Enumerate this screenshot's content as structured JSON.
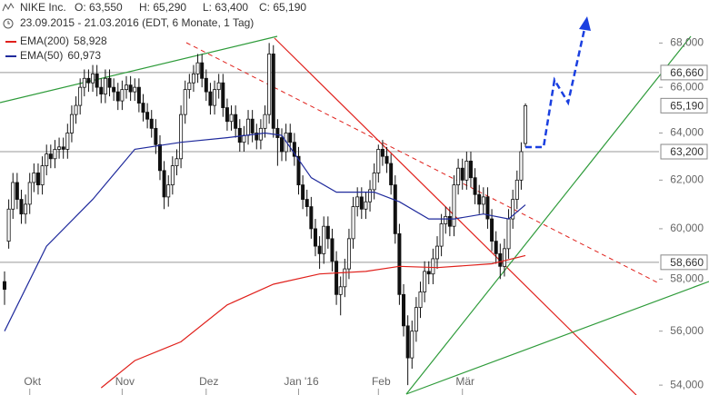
{
  "chart_data": {
    "type": "candlestick",
    "symbol": "NIKE Inc.",
    "ohlc_info": [
      "O: 63,550",
      "H: 65,290",
      "L: 63,400",
      "C: 65,190"
    ],
    "range_text": "23.09.2015 - 21.03.2016 (EDT, 6 Monate, 1 Tag)",
    "log_scale": true,
    "grid": false,
    "xlim": [
      -1.08,
      155.8
    ],
    "xticks": [
      {
        "value": 6,
        "label": "Okt"
      },
      {
        "value": 28,
        "label": "Nov"
      },
      {
        "value": 48,
        "label": "Dez"
      },
      {
        "value": 70,
        "label": "Jan '16"
      },
      {
        "value": 89,
        "label": "Feb"
      },
      {
        "value": 109,
        "label": "Mär"
      }
    ],
    "ylim": [
      53.74,
      70
    ],
    "yticks": [
      {
        "value": 54,
        "label": "54,000"
      },
      {
        "value": 56,
        "label": "56,000"
      },
      {
        "value": 58,
        "label": "58,000"
      },
      {
        "value": 60,
        "label": "60,000"
      },
      {
        "value": 62,
        "label": "62,000"
      },
      {
        "value": 64,
        "label": "64,000"
      },
      {
        "value": 66,
        "label": "66,000"
      },
      {
        "value": 68,
        "label": "68,000"
      }
    ],
    "levels": [
      {
        "value": 66.66,
        "label": "66,660"
      },
      {
        "value": 63.2,
        "label": "63,200"
      },
      {
        "value": 58.66,
        "label": "58,660"
      }
    ],
    "price_label": {
      "value": 65.19,
      "label": "65,190"
    },
    "up_color": "#ffffff",
    "down_color": "#111111",
    "ohlc": [
      [
        57.9,
        58.3,
        57.0,
        57.6
      ],
      [
        59.5,
        61.2,
        59.2,
        60.8
      ],
      [
        60.8,
        62.3,
        60.4,
        61.9
      ],
      [
        61.9,
        62.3,
        60.8,
        61.2
      ],
      [
        61.2,
        61.6,
        60.2,
        60.6
      ],
      [
        60.6,
        61.4,
        60.2,
        61.0
      ],
      [
        61.0,
        62.3,
        60.6,
        61.9
      ],
      [
        61.9,
        62.7,
        61.5,
        62.3
      ],
      [
        62.3,
        62.7,
        61.4,
        61.8
      ],
      [
        61.8,
        63.0,
        61.4,
        62.6
      ],
      [
        62.6,
        63.5,
        62.2,
        63.1
      ],
      [
        63.1,
        63.5,
        62.5,
        62.9
      ],
      [
        62.9,
        63.7,
        62.5,
        63.3
      ],
      [
        63.3,
        63.8,
        62.9,
        63.4
      ],
      [
        63.4,
        63.8,
        62.9,
        63.3
      ],
      [
        63.3,
        64.4,
        62.9,
        64.0
      ],
      [
        64.0,
        65.2,
        63.6,
        64.8
      ],
      [
        64.8,
        65.6,
        64.4,
        65.2
      ],
      [
        65.2,
        66.4,
        64.8,
        66.0
      ],
      [
        66.0,
        66.8,
        65.6,
        66.4
      ],
      [
        66.4,
        66.8,
        65.8,
        66.2
      ],
      [
        66.2,
        67.0,
        65.8,
        66.6
      ],
      [
        66.6,
        67.0,
        65.6,
        66.0
      ],
      [
        66.0,
        66.4,
        65.3,
        65.7
      ],
      [
        65.7,
        66.8,
        65.3,
        66.4
      ],
      [
        66.4,
        66.8,
        65.6,
        66.0
      ],
      [
        66.0,
        66.4,
        65.4,
        65.8
      ],
      [
        65.8,
        66.2,
        65.0,
        65.4
      ],
      [
        65.4,
        66.3,
        65.0,
        65.9
      ],
      [
        65.9,
        66.5,
        65.5,
        66.1
      ],
      [
        66.1,
        66.5,
        65.4,
        65.8
      ],
      [
        65.8,
        66.4,
        65.4,
        66.0
      ],
      [
        66.0,
        66.4,
        64.9,
        65.3
      ],
      [
        65.3,
        65.7,
        64.5,
        64.9
      ],
      [
        64.9,
        65.3,
        64.2,
        64.6
      ],
      [
        64.6,
        65.0,
        63.8,
        64.2
      ],
      [
        64.2,
        64.6,
        63.1,
        63.5
      ],
      [
        63.5,
        63.9,
        62.0,
        62.4
      ],
      [
        62.4,
        62.8,
        60.8,
        61.3
      ],
      [
        61.3,
        62.2,
        60.9,
        61.8
      ],
      [
        61.8,
        63.0,
        61.4,
        62.6
      ],
      [
        62.6,
        63.3,
        62.2,
        62.9
      ],
      [
        62.9,
        65.2,
        62.5,
        64.8
      ],
      [
        64.8,
        66.3,
        64.4,
        65.9
      ],
      [
        65.9,
        66.6,
        65.5,
        66.2
      ],
      [
        66.2,
        67.0,
        65.8,
        66.6
      ],
      [
        66.6,
        67.5,
        66.2,
        67.1
      ],
      [
        67.1,
        67.5,
        66.0,
        66.4
      ],
      [
        66.4,
        66.8,
        65.4,
        65.8
      ],
      [
        65.8,
        66.2,
        64.8,
        65.2
      ],
      [
        65.2,
        66.3,
        64.8,
        65.9
      ],
      [
        65.9,
        66.6,
        65.5,
        66.2
      ],
      [
        66.2,
        66.6,
        64.7,
        65.1
      ],
      [
        65.1,
        65.5,
        64.1,
        64.5
      ],
      [
        64.5,
        65.2,
        64.1,
        64.8
      ],
      [
        64.8,
        65.2,
        63.8,
        64.2
      ],
      [
        64.2,
        64.6,
        63.2,
        63.6
      ],
      [
        63.6,
        64.3,
        63.2,
        63.9
      ],
      [
        63.9,
        65.0,
        63.5,
        64.6
      ],
      [
        64.6,
        65.0,
        63.6,
        64.0
      ],
      [
        64.0,
        64.4,
        63.3,
        63.7
      ],
      [
        63.7,
        64.6,
        63.3,
        64.2
      ],
      [
        64.2,
        65.2,
        63.8,
        64.8
      ],
      [
        64.8,
        68.0,
        64.4,
        67.5
      ],
      [
        67.5,
        67.9,
        63.8,
        64.2
      ],
      [
        64.2,
        64.6,
        62.6,
        63.8
      ],
      [
        63.8,
        64.2,
        62.8,
        63.2
      ],
      [
        63.2,
        64.4,
        62.8,
        64.0
      ],
      [
        64.0,
        64.4,
        63.2,
        63.6
      ],
      [
        63.6,
        64.0,
        62.6,
        63.0
      ],
      [
        63.0,
        63.4,
        61.4,
        61.8
      ],
      [
        61.8,
        62.2,
        60.8,
        61.2
      ],
      [
        61.2,
        61.6,
        60.5,
        60.9
      ],
      [
        60.9,
        61.3,
        59.6,
        60.0
      ],
      [
        60.0,
        60.4,
        58.9,
        59.3
      ],
      [
        59.3,
        59.7,
        58.4,
        59.0
      ],
      [
        59.0,
        60.5,
        58.6,
        60.1
      ],
      [
        60.1,
        60.5,
        59.2,
        59.6
      ],
      [
        59.6,
        60.0,
        58.3,
        58.7
      ],
      [
        58.7,
        59.1,
        57.0,
        57.4
      ],
      [
        57.4,
        58.1,
        56.6,
        57.7
      ],
      [
        57.7,
        58.8,
        57.3,
        58.4
      ],
      [
        58.4,
        60.0,
        58.0,
        59.6
      ],
      [
        59.6,
        61.3,
        59.2,
        60.9
      ],
      [
        60.9,
        61.7,
        60.5,
        61.3
      ],
      [
        61.3,
        61.7,
        60.4,
        60.8
      ],
      [
        60.8,
        61.5,
        60.4,
        61.1
      ],
      [
        61.1,
        62.0,
        60.7,
        61.6
      ],
      [
        61.6,
        62.7,
        61.2,
        62.3
      ],
      [
        62.3,
        63.5,
        61.9,
        63.3
      ],
      [
        63.3,
        63.7,
        62.6,
        63.0
      ],
      [
        63.0,
        63.4,
        62.3,
        62.7
      ],
      [
        62.7,
        63.1,
        61.4,
        61.8
      ],
      [
        61.8,
        62.2,
        59.4,
        59.8
      ],
      [
        59.8,
        60.2,
        57.0,
        57.4
      ],
      [
        57.4,
        57.8,
        55.8,
        56.2
      ],
      [
        56.2,
        56.6,
        54.0,
        55.0
      ],
      [
        55.0,
        56.4,
        54.6,
        56.0
      ],
      [
        56.0,
        57.3,
        55.6,
        56.9
      ],
      [
        56.9,
        57.9,
        56.5,
        57.5
      ],
      [
        57.5,
        58.7,
        57.1,
        58.3
      ],
      [
        58.3,
        58.7,
        57.8,
        58.2
      ],
      [
        58.2,
        59.2,
        57.8,
        58.8
      ],
      [
        58.8,
        59.7,
        58.4,
        59.3
      ],
      [
        59.3,
        60.6,
        58.9,
        60.2
      ],
      [
        60.2,
        60.9,
        59.8,
        60.5
      ],
      [
        60.5,
        60.9,
        59.7,
        60.1
      ],
      [
        60.1,
        62.2,
        59.7,
        61.8
      ],
      [
        61.8,
        62.9,
        61.4,
        62.5
      ],
      [
        62.5,
        62.9,
        61.6,
        62.0
      ],
      [
        62.0,
        63.2,
        61.6,
        62.8
      ],
      [
        62.8,
        63.2,
        61.7,
        62.1
      ],
      [
        62.1,
        62.5,
        61.0,
        61.4
      ],
      [
        61.4,
        61.8,
        60.6,
        61.0
      ],
      [
        61.0,
        61.7,
        60.6,
        61.3
      ],
      [
        61.3,
        61.7,
        60.0,
        60.4
      ],
      [
        60.4,
        60.8,
        59.1,
        59.5
      ],
      [
        59.5,
        59.9,
        58.6,
        59.0
      ],
      [
        59.0,
        59.4,
        58.0,
        58.5
      ],
      [
        58.5,
        59.6,
        58.1,
        59.2
      ],
      [
        59.2,
        60.8,
        58.8,
        60.4
      ],
      [
        60.4,
        61.6,
        60.0,
        61.2
      ],
      [
        61.2,
        62.4,
        60.8,
        62.0
      ],
      [
        62.0,
        63.6,
        61.6,
        63.2
      ],
      [
        63.55,
        65.29,
        63.4,
        65.19
      ]
    ],
    "series": [
      {
        "name": "EMA(200)",
        "color": "#e0201b",
        "value_label": "58,928",
        "x": [
          23,
          31,
          42,
          53,
          64,
          75,
          86,
          94,
          103,
          116,
          124
        ],
        "values": [
          53.9,
          54.9,
          55.6,
          57.0,
          57.8,
          58.2,
          58.3,
          58.5,
          58.45,
          58.6,
          58.928
        ]
      },
      {
        "name": "EMA(50)",
        "color": "#1f2a9c",
        "value_label": "60,973",
        "x": [
          0,
          10,
          21,
          31,
          42,
          53,
          62,
          66,
          73,
          79,
          88,
          94,
          101,
          107,
          114,
          120,
          124
        ],
        "values": [
          56.0,
          59.3,
          61.2,
          63.3,
          63.6,
          63.8,
          64.0,
          63.9,
          62.1,
          61.5,
          61.5,
          61.1,
          60.4,
          60.4,
          60.6,
          60.4,
          60.973
        ]
      }
    ]
  }
}
